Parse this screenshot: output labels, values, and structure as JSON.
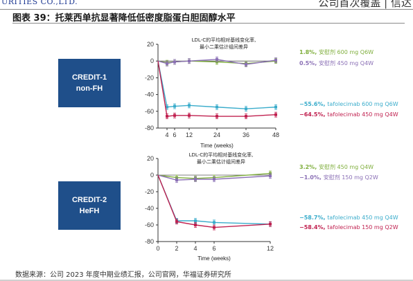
{
  "header": {
    "left_text": "URITIES CO.,LTD.",
    "right_text": "公司首次覆盖 | 信达"
  },
  "figure_title": "图表 39：托莱西单抗显著降低低密度脂蛋白胆固醇水平",
  "source": "数据来源：公司 2023 年度中期业绩汇报，公司官网，华福证券研究所",
  "colors": {
    "green": "#7fae3c",
    "purple": "#8a6fb5",
    "cyan": "#3aaccb",
    "crimson": "#c0204f",
    "study_box": "#1f4f8a"
  },
  "chart_data": [
    {
      "type": "line",
      "study_label": [
        "CREDIT-1",
        "non-FH"
      ],
      "title": [
        "LDL-C的平均相对基线变化率,",
        "最小二乘估计组间差异"
      ],
      "xlabel": "Time (weeks)",
      "x_ticks": [
        4,
        6,
        12,
        24,
        36,
        48
      ],
      "y_ticks": [
        20,
        0,
        -20,
        -40,
        -60,
        -80
      ],
      "ylim": [
        -80,
        20
      ],
      "xlim": [
        0,
        48
      ],
      "series": [
        {
          "color_key": "green",
          "legend_pct": "1.8%",
          "legend_text": "安慰剂 600 mg Q6W",
          "x": [
            0,
            4,
            6,
            12,
            24,
            36,
            48
          ],
          "y": [
            0,
            -2,
            -1,
            0,
            -1,
            -3,
            0
          ]
        },
        {
          "color_key": "purple",
          "legend_pct": "0.5%",
          "legend_text": "安慰剂 450 mg Q4W",
          "x": [
            0,
            4,
            6,
            12,
            24,
            36,
            48
          ],
          "y": [
            0,
            -3,
            -1,
            0,
            2,
            -4,
            1
          ]
        },
        {
          "color_key": "cyan",
          "legend_pct": "−55.6%",
          "legend_text": "tafolecimab 600 mg Q6W",
          "x": [
            0,
            4,
            6,
            12,
            24,
            36,
            48
          ],
          "y": [
            0,
            -55,
            -54,
            -53,
            -55,
            -57,
            -55
          ]
        },
        {
          "color_key": "crimson",
          "legend_pct": "−64.5%",
          "legend_text": "tafolecimab 450 mg Q4W",
          "x": [
            0,
            4,
            6,
            12,
            24,
            36,
            48
          ],
          "y": [
            0,
            -66,
            -65,
            -65,
            -66,
            -66,
            -64
          ]
        }
      ]
    },
    {
      "type": "line",
      "study_label": [
        "CREDIT-2",
        "HeFH"
      ],
      "title": [
        "LDL-C的平均相对基线变化率,",
        "最小二乘估计组间差异"
      ],
      "xlabel": "Time (weeks)",
      "x_ticks": [
        0,
        2,
        4,
        6,
        12
      ],
      "y_ticks": [
        20,
        0,
        -20,
        -40,
        -60,
        -80
      ],
      "ylim": [
        -80,
        20
      ],
      "xlim": [
        0,
        12
      ],
      "series": [
        {
          "color_key": "green",
          "legend_pct": "3.2%",
          "legend_text": "安慰剂 450 mg Q4W",
          "x": [
            0,
            2,
            4,
            6,
            12
          ],
          "y": [
            0,
            -3,
            -4,
            -3,
            2
          ]
        },
        {
          "color_key": "purple",
          "legend_pct": "−1.0%",
          "legend_text": "安慰剂 150 mg Q2W",
          "x": [
            0,
            2,
            4,
            6,
            12
          ],
          "y": [
            0,
            -6,
            -5,
            -5,
            -1
          ]
        },
        {
          "color_key": "cyan",
          "legend_pct": "−58.7%",
          "legend_text": "tafolecimab 450 mg Q4W",
          "x": [
            0,
            2,
            4,
            6,
            12
          ],
          "y": [
            0,
            -55,
            -55,
            -57,
            -59
          ]
        },
        {
          "color_key": "crimson",
          "legend_pct": "−58.4%",
          "legend_text": "tafolecimab 150 mg Q2W",
          "x": [
            0,
            2,
            4,
            6,
            12
          ],
          "y": [
            0,
            -56,
            -60,
            -63,
            -59
          ]
        }
      ]
    }
  ]
}
